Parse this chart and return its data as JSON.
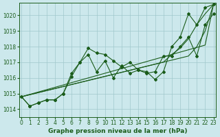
{
  "background_color": "#cce8ec",
  "grid_color": "#a0c8cc",
  "line_color": "#1a5c1a",
  "ylim": [
    1013.5,
    1020.8
  ],
  "xlim": [
    -0.3,
    23.3
  ],
  "yticks": [
    1014,
    1015,
    1016,
    1017,
    1018,
    1019,
    1020
  ],
  "xticks": [
    0,
    1,
    2,
    3,
    4,
    5,
    6,
    7,
    8,
    9,
    10,
    11,
    12,
    13,
    14,
    15,
    16,
    17,
    18,
    19,
    20,
    21,
    22,
    23
  ],
  "series_wavy1": [
    1014.8,
    1014.2,
    1014.4,
    1014.6,
    1014.6,
    1015.0,
    1016.3,
    1017.0,
    1017.9,
    1017.6,
    1017.5,
    1017.1,
    1016.7,
    1017.0,
    1016.5,
    1016.4,
    1015.9,
    1016.4,
    1018.0,
    1018.6,
    1020.1,
    1019.4,
    1020.5,
    1020.7
  ],
  "series_wavy2": [
    1014.8,
    1014.2,
    1014.4,
    1014.6,
    1014.6,
    1015.0,
    1016.1,
    1017.0,
    1017.5,
    1016.4,
    1017.1,
    1016.0,
    1016.8,
    1016.3,
    1016.5,
    1016.3,
    1016.4,
    1017.4,
    1017.4,
    1018.0,
    1018.6,
    1017.4,
    1019.4,
    1020.1
  ],
  "series_linear1": [
    1014.8,
    1014.95,
    1015.1,
    1015.25,
    1015.4,
    1015.55,
    1015.7,
    1015.85,
    1016.0,
    1016.15,
    1016.3,
    1016.45,
    1016.6,
    1016.75,
    1016.9,
    1017.05,
    1017.2,
    1017.35,
    1017.5,
    1017.65,
    1017.8,
    1017.95,
    1018.1,
    1020.7
  ],
  "series_linear2": [
    1014.8,
    1014.93,
    1015.06,
    1015.19,
    1015.32,
    1015.45,
    1015.58,
    1015.71,
    1015.84,
    1015.97,
    1016.1,
    1016.23,
    1016.36,
    1016.49,
    1016.62,
    1016.75,
    1016.88,
    1017.01,
    1017.14,
    1017.27,
    1017.4,
    1018.0,
    1019.0,
    1020.7
  ],
  "series_linear3": [
    1014.8,
    1014.93,
    1015.06,
    1015.19,
    1015.32,
    1015.45,
    1015.58,
    1015.71,
    1015.84,
    1015.97,
    1016.1,
    1016.23,
    1016.36,
    1016.49,
    1016.62,
    1016.75,
    1016.88,
    1017.01,
    1017.5,
    1017.9,
    1018.5,
    1019.4,
    1020.1,
    1020.7
  ],
  "tick_fontsize": 5.5,
  "label_fontsize": 6.5
}
